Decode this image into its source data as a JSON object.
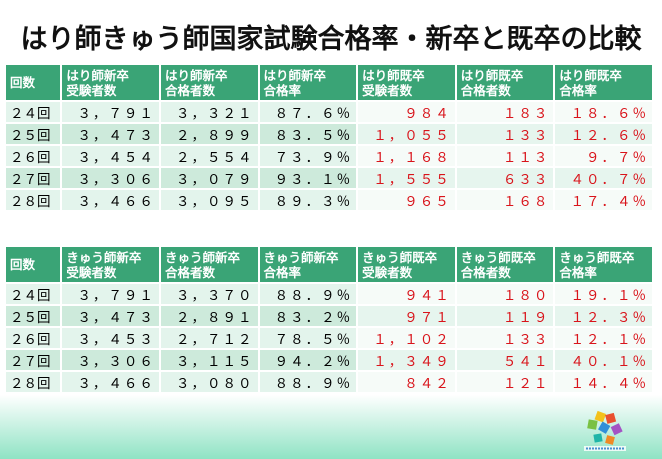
{
  "title": "はり師きゅう師国家試験合格率・新卒と既卒の比較",
  "hari": {
    "headers": [
      "回数",
      "はり師新卒\n受験者数",
      "はり師新卒\n合格者数",
      "はり師新卒\n合格率",
      "はり師既卒\n受験者数",
      "はり師既卒\n合格者数",
      "はり師既卒\n合格率"
    ],
    "rows": [
      [
        "２４回",
        "３，７９１",
        "３，３２１",
        "８７．６％",
        "９８４",
        "１８３",
        "１８．６％"
      ],
      [
        "２５回",
        "３，４７３",
        "２，８９９",
        "８３．５％",
        "１，０５５",
        "１３３",
        "１２．６％"
      ],
      [
        "２６回",
        "３，４５４",
        "２，５５４",
        "７３．９％",
        "１，１６８",
        "１１３",
        "９．７％"
      ],
      [
        "２７回",
        "３，３０６",
        "３，０７９",
        "９３．１％",
        "１，５５５",
        "６３３",
        "４０．７％"
      ],
      [
        "２８回",
        "３，４６６",
        "３，０９５",
        "８９．３％",
        "９６５",
        "１６８",
        "１７．４％"
      ]
    ]
  },
  "kyu": {
    "headers": [
      "回数",
      "きゅう師新卒\n受験者数",
      "きゅう師新卒\n合格者数",
      "きゅう師新卒\n合格率",
      "きゅう師既卒\n受験者数",
      "きゅう師既卒\n合格者数",
      "きゅう師既卒\n合格率"
    ],
    "rows": [
      [
        "２４回",
        "３，７９１",
        "３，３７０",
        "８８．９％",
        "９４１",
        "１８０",
        "１９．１％"
      ],
      [
        "２５回",
        "３，４７３",
        "２，８９１",
        "８３．２％",
        "９７１",
        "１１９",
        "１２．３％"
      ],
      [
        "２６回",
        "３，４５３",
        "２，７１２",
        "７８．５％",
        "１，１０２",
        "１３３",
        "１２．１％"
      ],
      [
        "２７回",
        "３，３０６",
        "３，１１５",
        "９４．２％",
        "１，３４９",
        "５４１",
        "４０．１％"
      ],
      [
        "２８回",
        "３，４６６",
        "３，０８０",
        "８８．９％",
        "８４２",
        "１２１",
        "１４．４％"
      ]
    ]
  },
  "colors": {
    "header_bg": "#3aa476",
    "row_light": "#e3f4ec",
    "row_dark": "#cdeadb",
    "old_text": "#d9141b"
  }
}
